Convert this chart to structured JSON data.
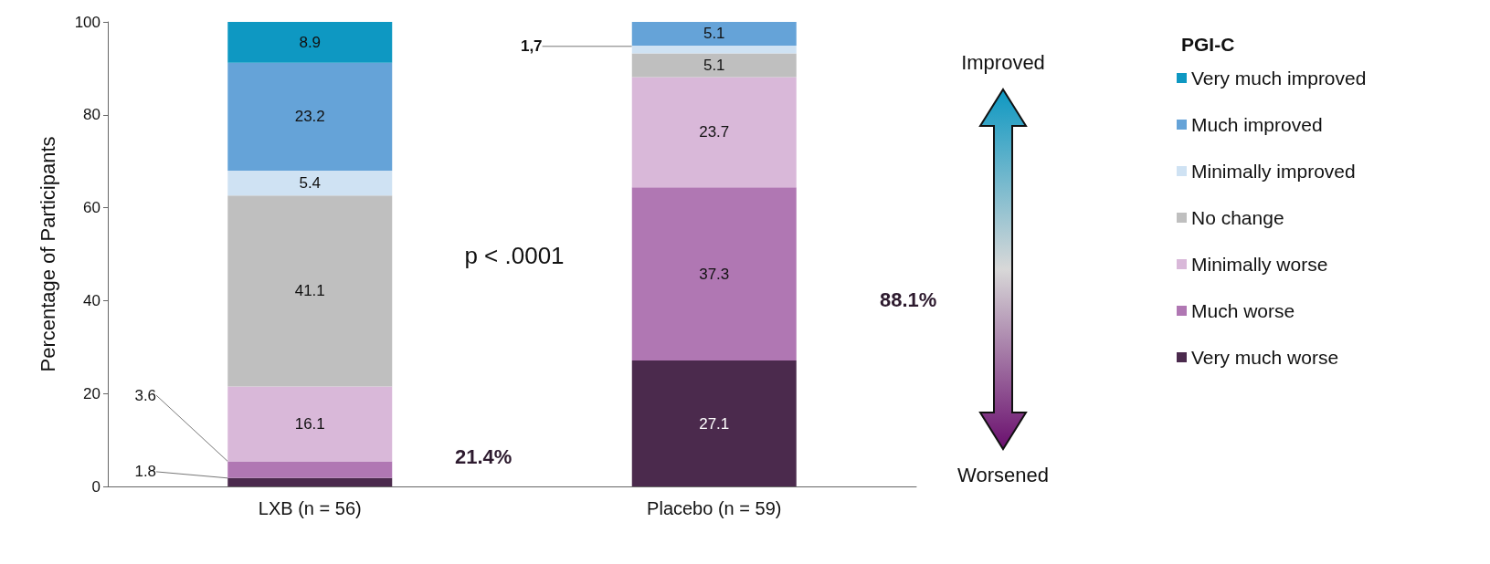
{
  "chart_data": {
    "type": "bar",
    "stacked": true,
    "ylabel": "Percentage of Participants",
    "legend_title": "PGI-C",
    "legend": "right",
    "categories": [
      "LXB (n = 56)",
      "Placebo (n = 59)"
    ],
    "ylim": [
      0,
      100
    ],
    "yticks": [
      0,
      20,
      40,
      60,
      80,
      100
    ],
    "grid": false,
    "series": [
      {
        "name": "Very much worse",
        "color": "#4b2a4d",
        "values": [
          1.8,
          27.1
        ],
        "value_labels": [
          "1.8",
          "27.1"
        ]
      },
      {
        "name": "Much worse",
        "color": "#b077b3",
        "values": [
          3.6,
          37.3
        ],
        "value_labels": [
          "3.6",
          "37.3"
        ]
      },
      {
        "name": "Minimally worse",
        "color": "#d9b8d9",
        "values": [
          16.1,
          23.7
        ],
        "value_labels": [
          "16.1",
          "23.7"
        ]
      },
      {
        "name": "No change",
        "color": "#bfbfbf",
        "values": [
          41.1,
          5.1
        ],
        "value_labels": [
          "41.1",
          "5.1"
        ]
      },
      {
        "name": "Minimally improved",
        "color": "#cfe2f3",
        "values": [
          5.4,
          1.7
        ],
        "value_labels": [
          "5.4",
          "1,7"
        ]
      },
      {
        "name": "Much improved",
        "color": "#65a3d8",
        "values": [
          23.2,
          5.1
        ],
        "value_labels": [
          "23.2",
          "5.1"
        ]
      },
      {
        "name": "Very much improved",
        "color": "#0e98c2",
        "values": [
          8.9,
          0
        ],
        "value_labels": [
          "8.9",
          null
        ]
      }
    ],
    "annotations": [
      "p < .0001",
      "Improved",
      "Worsened",
      "21.4%",
      "88.1%"
    ]
  }
}
